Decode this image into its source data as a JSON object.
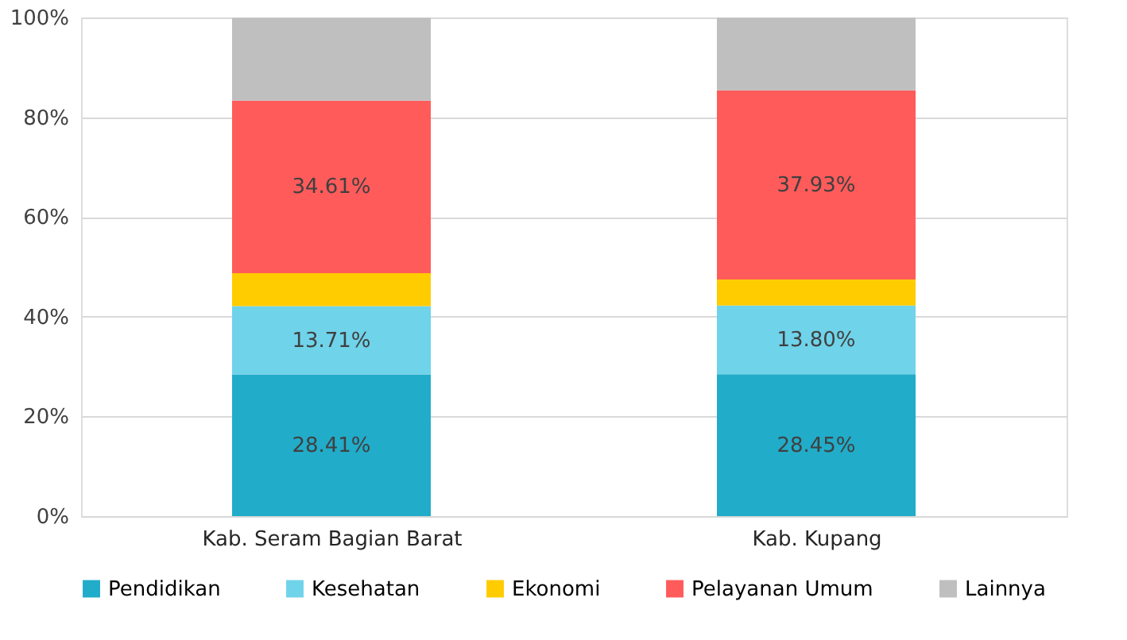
{
  "chart_data": {
    "type": "bar",
    "stacked": true,
    "categories": [
      "Kab. Seram Bagian Barat",
      "Kab. Kupang"
    ],
    "series": [
      {
        "name": "Pendidikan",
        "color": "#21acc9",
        "values": [
          28.41,
          28.45
        ],
        "value_labels": [
          "28.41%",
          "28.45%"
        ]
      },
      {
        "name": "Kesehatan",
        "color": "#6fd3ea",
        "values": [
          13.71,
          13.8
        ],
        "value_labels": [
          "13.71%",
          "13.80%"
        ]
      },
      {
        "name": "Ekonomi",
        "color": "#ffcc00",
        "values": [
          6.6,
          5.2
        ],
        "value_labels": [
          null,
          null
        ]
      },
      {
        "name": "Pelayanan Umum",
        "color": "#ff5b5b",
        "values": [
          34.61,
          37.93
        ],
        "value_labels": [
          "34.61%",
          "37.93%"
        ]
      },
      {
        "name": "Lainnya",
        "color": "#bfbfbf",
        "values": [
          16.6,
          14.6
        ],
        "value_labels": [
          null,
          null
        ]
      }
    ],
    "ylim": [
      0,
      100
    ],
    "yticks": [
      {
        "value": 0,
        "label": "0%"
      },
      {
        "value": 20,
        "label": "20%"
      },
      {
        "value": 40,
        "label": "40%"
      },
      {
        "value": 60,
        "label": "60%"
      },
      {
        "value": 80,
        "label": "80%"
      },
      {
        "value": 100,
        "label": "100%"
      }
    ],
    "grid": "y",
    "legend": "bottom"
  }
}
